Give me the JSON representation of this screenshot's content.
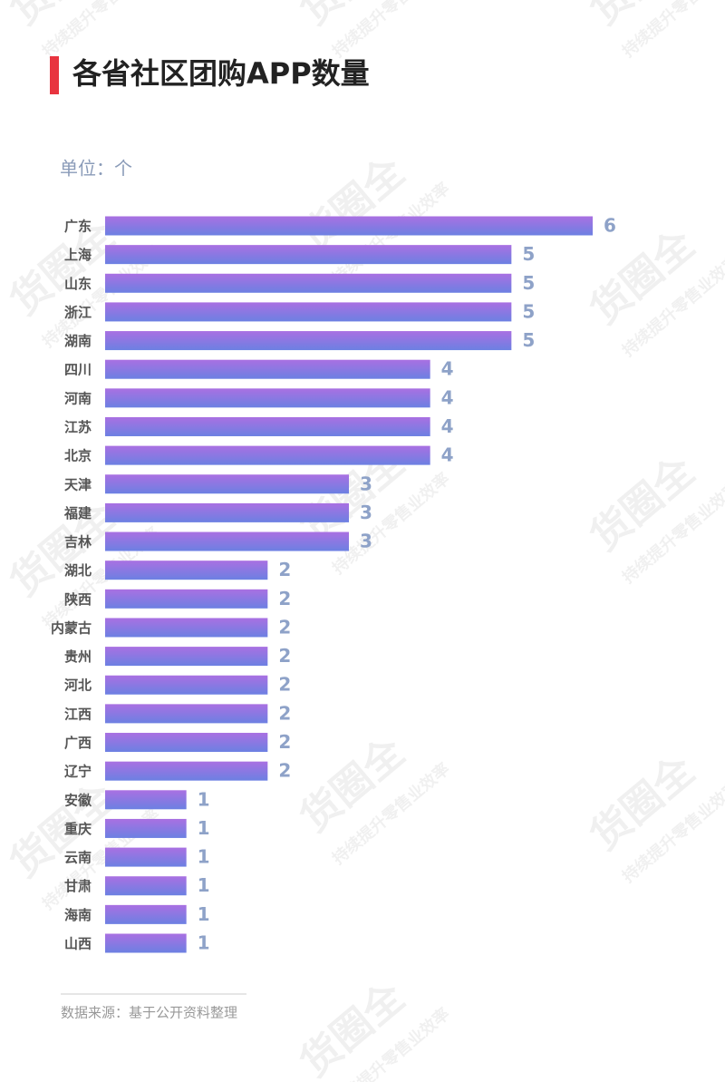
{
  "chart_data": {
    "type": "bar",
    "orientation": "horizontal",
    "title": "各省社区团购APP数量",
    "unit_label": "单位：个",
    "source": "数据来源：基于公开资料整理",
    "watermark": [
      "货圈全",
      "持续提升零售业效率"
    ],
    "categories": [
      "广东",
      "上海",
      "山东",
      "浙江",
      "湖南",
      "四川",
      "河南",
      "江苏",
      "北京",
      "天津",
      "福建",
      "吉林",
      "湖北",
      "陕西",
      "内蒙古",
      "贵州",
      "河北",
      "江西",
      "广西",
      "辽宁",
      "安徽",
      "重庆",
      "云南",
      "甘肃",
      "海南",
      "山西"
    ],
    "values": [
      6,
      5,
      5,
      5,
      5,
      4,
      4,
      4,
      4,
      3,
      3,
      3,
      2,
      2,
      2,
      2,
      2,
      2,
      2,
      2,
      1,
      1,
      1,
      1,
      1,
      1
    ],
    "xlim": [
      0,
      6
    ],
    "color_top": "#a970e2",
    "color_bottom": "#6c80e2",
    "title_accent_color": "#e8343f"
  }
}
